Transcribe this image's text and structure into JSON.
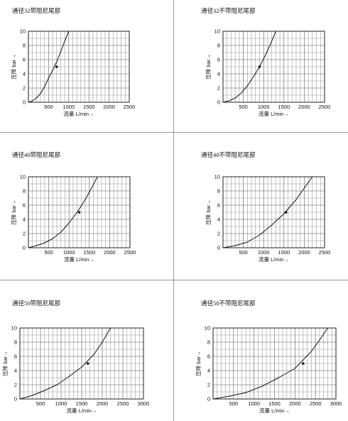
{
  "chart_data": [
    {
      "type": "line",
      "title": "通径32带阻尼尾部",
      "xlabel": "流量 L/min→",
      "ylabel": "压降 bar→",
      "xlim": [
        0,
        2500
      ],
      "ylim": [
        0,
        10
      ],
      "xticks": [
        500,
        1000,
        1500,
        2000,
        2500
      ],
      "yticks": [
        0,
        2,
        4,
        6,
        8,
        10
      ],
      "grid": true,
      "series": [
        {
          "x": [
            0,
            100,
            200,
            300,
            400,
            500,
            600,
            700,
            800,
            900,
            1000
          ],
          "y": [
            0,
            0.2,
            0.6,
            1.2,
            2.2,
            3.4,
            4.5,
            5.7,
            7.1,
            8.6,
            10
          ]
        }
      ],
      "marker": {
        "x": 700,
        "y": 5
      }
    },
    {
      "type": "line",
      "title": "通径32不带阻尼尾部",
      "xlabel": "流量 L/min→",
      "ylabel": "压降 bar→",
      "xlim": [
        0,
        2500
      ],
      "ylim": [
        0,
        10
      ],
      "xticks": [
        500,
        1000,
        1500,
        2000,
        2500
      ],
      "yticks": [
        0,
        2,
        4,
        6,
        8,
        10
      ],
      "grid": true,
      "series": [
        {
          "x": [
            0,
            150,
            300,
            450,
            600,
            750,
            900,
            1050,
            1200,
            1300
          ],
          "y": [
            0,
            0.2,
            0.6,
            1.3,
            2.3,
            3.6,
            5.0,
            6.7,
            8.6,
            10
          ]
        }
      ],
      "marker": {
        "x": 900,
        "y": 5
      }
    },
    {
      "type": "line",
      "title": "通径40带阻尼尾部",
      "xlabel": "流量 L/min→",
      "ylabel": "压降 bar→",
      "xlim": [
        0,
        2500
      ],
      "ylim": [
        0,
        10
      ],
      "xticks": [
        500,
        1000,
        1500,
        2000,
        2500
      ],
      "yticks": [
        0,
        2,
        4,
        6,
        8,
        10
      ],
      "grid": true,
      "series": [
        {
          "x": [
            0,
            200,
            400,
            600,
            800,
            1000,
            1200,
            1400,
            1600,
            1700
          ],
          "y": [
            0,
            0.3,
            0.7,
            1.3,
            2.2,
            3.5,
            5.0,
            6.8,
            8.9,
            10
          ]
        }
      ],
      "marker": {
        "x": 1250,
        "y": 5
      }
    },
    {
      "type": "line",
      "title": "通径40不带阻尼尾部",
      "xlabel": "流量 L/min→",
      "ylabel": "压降 bar→",
      "xlim": [
        0,
        2500
      ],
      "ylim": [
        0,
        10
      ],
      "xticks": [
        500,
        1000,
        1500,
        2000,
        2500
      ],
      "yticks": [
        0,
        2,
        4,
        6,
        8,
        10
      ],
      "grid": true,
      "series": [
        {
          "x": [
            0,
            300,
            600,
            900,
            1200,
            1500,
            1800,
            2000,
            2200
          ],
          "y": [
            0,
            0.3,
            0.8,
            1.8,
            3.2,
            4.8,
            6.8,
            8.4,
            10
          ]
        }
      ],
      "marker": {
        "x": 1550,
        "y": 5
      }
    },
    {
      "type": "line",
      "title": "通径50带阻尼尾部",
      "xlabel": "流量 L/min→",
      "ylabel": "压降 bar→",
      "xlim": [
        0,
        3000
      ],
      "ylim": [
        0,
        10
      ],
      "xticks": [
        500,
        1000,
        1500,
        2000,
        2500,
        3000
      ],
      "yticks": [
        0,
        2,
        4,
        6,
        8,
        10
      ],
      "grid": true,
      "series": [
        {
          "x": [
            0,
            300,
            600,
            900,
            1200,
            1500,
            1800,
            2000,
            2200
          ],
          "y": [
            0,
            0.5,
            1.2,
            2.0,
            3.2,
            4.5,
            6.3,
            8.0,
            10
          ]
        }
      ],
      "marker": {
        "x": 1650,
        "y": 5
      }
    },
    {
      "type": "line",
      "title": "通径50不带阻尼尾部",
      "xlabel": "流量 L/min→",
      "ylabel": "压降 bar→",
      "xlim": [
        0,
        3000
      ],
      "ylim": [
        0,
        10
      ],
      "xticks": [
        500,
        1000,
        1500,
        2000,
        2500,
        3000
      ],
      "yticks": [
        0,
        2,
        4,
        6,
        8,
        10
      ],
      "grid": true,
      "series": [
        {
          "x": [
            0,
            400,
            800,
            1200,
            1600,
            2000,
            2400,
            2600,
            2800
          ],
          "y": [
            0,
            0.4,
            0.9,
            1.8,
            3.0,
            4.3,
            6.7,
            8.3,
            10
          ]
        }
      ],
      "marker": {
        "x": 2200,
        "y": 5
      }
    }
  ]
}
